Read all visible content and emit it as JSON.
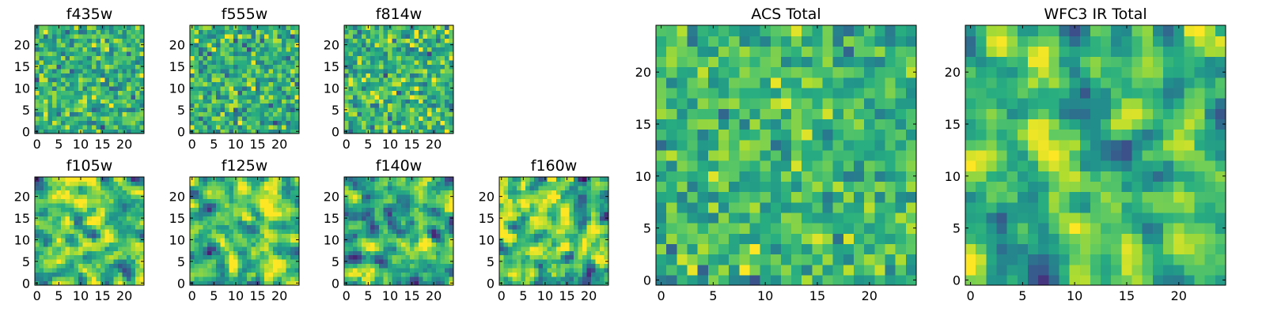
{
  "colors": {
    "colormap": [
      "#440154",
      "#472d7b",
      "#3b528b",
      "#2c728e",
      "#21918c",
      "#28ae80",
      "#5ec962",
      "#addc30",
      "#fde725"
    ],
    "frame": "#000000",
    "background": "#ffffff"
  },
  "chart_data": [
    {
      "type": "heatmap",
      "title": "f435w",
      "size": 25,
      "seed": 11,
      "smoothing": 0,
      "contrast": 0.9,
      "xticks": [
        0,
        5,
        10,
        15,
        20
      ],
      "yticks": [
        0,
        5,
        10,
        15,
        20
      ],
      "xlim": [
        -0.5,
        24.5
      ],
      "ylim": [
        -0.5,
        24.5
      ]
    },
    {
      "type": "heatmap",
      "title": "f555w",
      "size": 25,
      "seed": 23,
      "smoothing": 0,
      "contrast": 0.9,
      "xticks": [
        0,
        5,
        10,
        15,
        20
      ],
      "yticks": [
        0,
        5,
        10,
        15,
        20
      ],
      "xlim": [
        -0.5,
        24.5
      ],
      "ylim": [
        -0.5,
        24.5
      ]
    },
    {
      "type": "heatmap",
      "title": "f814w",
      "size": 25,
      "seed": 37,
      "smoothing": 0,
      "contrast": 0.9,
      "xticks": [
        0,
        5,
        10,
        15,
        20
      ],
      "yticks": [
        0,
        5,
        10,
        15,
        20
      ],
      "xlim": [
        -0.5,
        24.5
      ],
      "ylim": [
        -0.5,
        24.5
      ]
    },
    {
      "type": "heatmap",
      "title": "f105w",
      "size": 25,
      "seed": 41,
      "smoothing": 1,
      "contrast": 1.1,
      "xticks": [
        0,
        5,
        10,
        15,
        20
      ],
      "yticks": [
        0,
        5,
        10,
        15,
        20
      ],
      "xlim": [
        -0.5,
        24.5
      ],
      "ylim": [
        -0.5,
        24.5
      ]
    },
    {
      "type": "heatmap",
      "title": "f125w",
      "size": 25,
      "seed": 53,
      "smoothing": 1,
      "contrast": 1.1,
      "xticks": [
        0,
        5,
        10,
        15,
        20
      ],
      "yticks": [
        0,
        5,
        10,
        15,
        20
      ],
      "xlim": [
        -0.5,
        24.5
      ],
      "ylim": [
        -0.5,
        24.5
      ]
    },
    {
      "type": "heatmap",
      "title": "f140w",
      "size": 25,
      "seed": 67,
      "smoothing": 1,
      "contrast": 1.1,
      "xticks": [
        0,
        5,
        10,
        15,
        20
      ],
      "yticks": [
        0,
        5,
        10,
        15,
        20
      ],
      "xlim": [
        -0.5,
        24.5
      ],
      "ylim": [
        -0.5,
        24.5
      ]
    },
    {
      "type": "heatmap",
      "title": "f160w",
      "size": 25,
      "seed": 79,
      "smoothing": 1,
      "contrast": 1.2,
      "xticks": [
        0,
        5,
        10,
        15,
        20
      ],
      "yticks": [
        0,
        5,
        10,
        15,
        20
      ],
      "xlim": [
        -0.5,
        24.5
      ],
      "ylim": [
        -0.5,
        24.5
      ]
    },
    {
      "type": "heatmap",
      "title": "ACS Total",
      "size": 25,
      "seed": 97,
      "smoothing": 0,
      "contrast": 0.8,
      "xticks": [
        0,
        5,
        10,
        15,
        20
      ],
      "yticks": [
        0,
        5,
        10,
        15,
        20
      ],
      "xlim": [
        -0.5,
        24.5
      ],
      "ylim": [
        -0.5,
        24.5
      ]
    },
    {
      "type": "heatmap",
      "title": "WFC3 IR Total",
      "size": 25,
      "seed": 113,
      "smoothing": 1,
      "contrast": 1.0,
      "xticks": [
        0,
        5,
        10,
        15,
        20
      ],
      "yticks": [
        0,
        5,
        10,
        15,
        20
      ],
      "xlim": [
        -0.5,
        24.5
      ],
      "ylim": [
        -0.5,
        24.5
      ]
    }
  ]
}
